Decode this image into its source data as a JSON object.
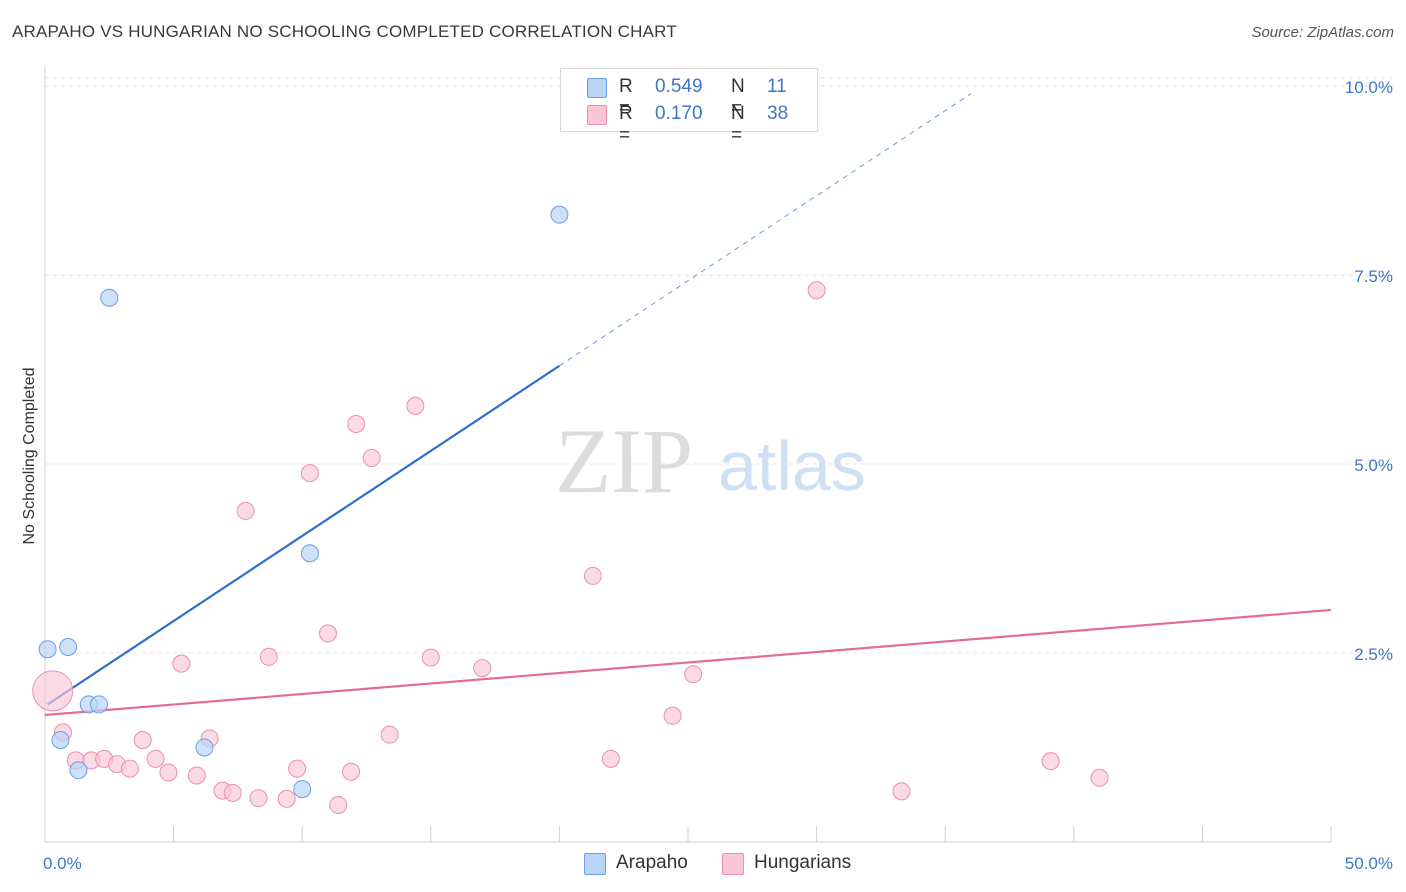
{
  "header": {
    "title": "ARAPAHO VS HUNGARIAN NO SCHOOLING COMPLETED CORRELATION CHART",
    "source": "Source: ZipAtlas.com"
  },
  "watermark": {
    "zip": "ZIP",
    "atlas": "atlas"
  },
  "legend": {
    "arapaho": {
      "r_label": "R =",
      "r_value": "0.549",
      "n_label": "N =",
      "n_value": "11"
    },
    "hungarians": {
      "r_label": "R =",
      "r_value": "0.170",
      "n_label": "N =",
      "n_value": "38"
    }
  },
  "bottom_legend": {
    "arapaho": "Arapaho",
    "hungarians": "Hungarians"
  },
  "colors": {
    "arapaho_fill": "#b9d4f5",
    "arapaho_stroke": "#6d9fe0",
    "arapaho_line": "#2e6fcc",
    "hungarians_fill": "#f9c6d5",
    "hungarians_stroke": "#ec8fae",
    "hungarians_line": "#e46b97",
    "tick_label": "#3f76c8"
  },
  "chart_data": {
    "type": "scatter",
    "title": "ARAPAHO VS HUNGARIAN NO SCHOOLING COMPLETED CORRELATION CHART",
    "xlabel": "",
    "ylabel": "No Schooling Completed",
    "xlim": [
      0,
      50
    ],
    "ylim": [
      0,
      10.2
    ],
    "x_tick_labels": [
      "0.0%",
      "50.0%"
    ],
    "y_ticks": [
      2.5,
      5.0,
      7.5,
      10.0
    ],
    "y_tick_labels": [
      "2.5%",
      "5.0%",
      "7.5%",
      "10.0%"
    ],
    "series": [
      {
        "name": "Arapaho",
        "points": [
          {
            "x": 0.1,
            "y": 2.55
          },
          {
            "x": 0.9,
            "y": 2.58
          },
          {
            "x": 2.5,
            "y": 7.2
          },
          {
            "x": 1.7,
            "y": 1.82
          },
          {
            "x": 2.1,
            "y": 1.82
          },
          {
            "x": 0.6,
            "y": 1.35
          },
          {
            "x": 1.3,
            "y": 0.95
          },
          {
            "x": 6.2,
            "y": 1.25
          },
          {
            "x": 10.3,
            "y": 3.82
          },
          {
            "x": 10.0,
            "y": 0.7
          },
          {
            "x": 20.0,
            "y": 8.3
          }
        ],
        "trend": {
          "x0": 0.1,
          "y0": 1.82,
          "x1": 20.0,
          "y1": 6.3,
          "dashed_to_x": 36.0,
          "dashed_to_y": 9.9
        }
      },
      {
        "name": "Hungarians",
        "points": [
          {
            "x": 0.3,
            "y": 2.0,
            "size": "large"
          },
          {
            "x": 0.7,
            "y": 1.45
          },
          {
            "x": 1.2,
            "y": 1.08
          },
          {
            "x": 1.8,
            "y": 1.08
          },
          {
            "x": 2.3,
            "y": 1.1
          },
          {
            "x": 2.8,
            "y": 1.03
          },
          {
            "x": 3.3,
            "y": 0.97
          },
          {
            "x": 3.8,
            "y": 1.35
          },
          {
            "x": 4.3,
            "y": 1.1
          },
          {
            "x": 4.8,
            "y": 0.92
          },
          {
            "x": 5.3,
            "y": 2.36
          },
          {
            "x": 5.9,
            "y": 0.88
          },
          {
            "x": 6.4,
            "y": 1.37
          },
          {
            "x": 6.9,
            "y": 0.68
          },
          {
            "x": 7.3,
            "y": 0.65
          },
          {
            "x": 7.8,
            "y": 4.38
          },
          {
            "x": 8.3,
            "y": 0.58
          },
          {
            "x": 8.7,
            "y": 2.45
          },
          {
            "x": 9.4,
            "y": 0.57
          },
          {
            "x": 9.8,
            "y": 0.97
          },
          {
            "x": 10.3,
            "y": 4.88
          },
          {
            "x": 11.0,
            "y": 2.76
          },
          {
            "x": 11.4,
            "y": 0.49
          },
          {
            "x": 11.9,
            "y": 0.93
          },
          {
            "x": 12.1,
            "y": 5.53
          },
          {
            "x": 12.7,
            "y": 5.08
          },
          {
            "x": 13.4,
            "y": 1.42
          },
          {
            "x": 14.4,
            "y": 5.77
          },
          {
            "x": 15.0,
            "y": 2.44
          },
          {
            "x": 17.0,
            "y": 2.3
          },
          {
            "x": 21.3,
            "y": 3.52
          },
          {
            "x": 22.0,
            "y": 1.1
          },
          {
            "x": 24.4,
            "y": 1.67
          },
          {
            "x": 25.2,
            "y": 2.22
          },
          {
            "x": 30.0,
            "y": 7.3
          },
          {
            "x": 33.3,
            "y": 0.67
          },
          {
            "x": 39.1,
            "y": 1.07
          },
          {
            "x": 41.0,
            "y": 0.85
          }
        ],
        "trend": {
          "x0": 0.0,
          "y0": 1.68,
          "x1": 50.0,
          "y1": 3.07
        }
      }
    ]
  }
}
